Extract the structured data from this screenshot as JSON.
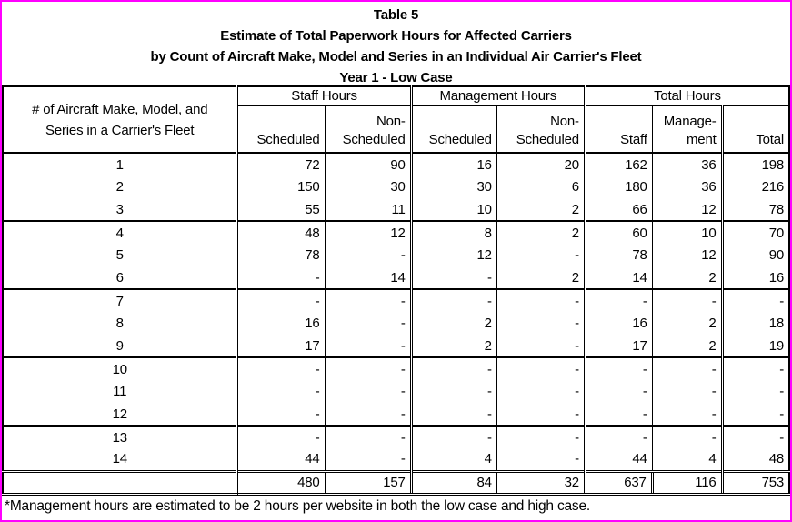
{
  "page": {
    "crop_border_color": "#ff00ff",
    "table_line_color": "#000000"
  },
  "title": {
    "line1": "Table 5",
    "line2": "Estimate of Total Paperwork Hours for Affected Carriers",
    "line3": "by Count of Aircraft Make, Model and Series in an Individual Air Carrier's Fleet",
    "line4": "Year 1 - Low Case"
  },
  "table": {
    "row_header_line1": "# of Aircraft Make, Model, and",
    "row_header_line2": "Series in a Carrier's Fleet",
    "groups": [
      {
        "label": "Staff Hours",
        "span": 2
      },
      {
        "label": "Management Hours",
        "span": 2
      },
      {
        "label": "Total Hours",
        "span": 3
      }
    ],
    "sub_headers": [
      {
        "top": "",
        "bottom": "Scheduled"
      },
      {
        "top": "Non-",
        "bottom": "Scheduled"
      },
      {
        "top": "",
        "bottom": "Scheduled"
      },
      {
        "top": "Non-",
        "bottom": "Scheduled"
      },
      {
        "top": "",
        "bottom": "Staff"
      },
      {
        "top": "Manage-",
        "bottom": "ment"
      },
      {
        "top": "",
        "bottom": "Total"
      }
    ],
    "rows": [
      {
        "fleet_count": "1",
        "values": [
          "72",
          "90",
          "16",
          "20",
          "162",
          "36",
          "198"
        ]
      },
      {
        "fleet_count": "2",
        "values": [
          "150",
          "30",
          "30",
          "6",
          "180",
          "36",
          "216"
        ]
      },
      {
        "fleet_count": "3",
        "values": [
          "55",
          "11",
          "10",
          "2",
          "66",
          "12",
          "78"
        ]
      },
      {
        "fleet_count": "4",
        "values": [
          "48",
          "12",
          "8",
          "2",
          "60",
          "10",
          "70"
        ]
      },
      {
        "fleet_count": "5",
        "values": [
          "78",
          "-",
          "12",
          "-",
          "78",
          "12",
          "90"
        ]
      },
      {
        "fleet_count": "6",
        "values": [
          "-",
          "14",
          "-",
          "2",
          "14",
          "2",
          "16"
        ]
      },
      {
        "fleet_count": "7",
        "values": [
          "-",
          "-",
          "-",
          "-",
          "-",
          "-",
          "-"
        ]
      },
      {
        "fleet_count": "8",
        "values": [
          "16",
          "-",
          "2",
          "-",
          "16",
          "2",
          "18"
        ]
      },
      {
        "fleet_count": "9",
        "values": [
          "17",
          "-",
          "2",
          "-",
          "17",
          "2",
          "19"
        ]
      },
      {
        "fleet_count": "10",
        "values": [
          "-",
          "-",
          "-",
          "-",
          "-",
          "-",
          "-"
        ]
      },
      {
        "fleet_count": "11",
        "values": [
          "-",
          "-",
          "-",
          "-",
          "-",
          "-",
          "-"
        ]
      },
      {
        "fleet_count": "12",
        "values": [
          "-",
          "-",
          "-",
          "-",
          "-",
          "-",
          "-"
        ]
      },
      {
        "fleet_count": "13",
        "values": [
          "-",
          "-",
          "-",
          "-",
          "-",
          "-",
          "-"
        ]
      },
      {
        "fleet_count": "14",
        "values": [
          "44",
          "-",
          "4",
          "-",
          "44",
          "4",
          "48"
        ]
      }
    ],
    "totals_row": {
      "label": "",
      "values": [
        "480",
        "157",
        "84",
        "32",
        "637",
        "116",
        "753"
      ]
    }
  },
  "footnote": "*Management hours are estimated to be 2 hours per website in both the low case and high case."
}
